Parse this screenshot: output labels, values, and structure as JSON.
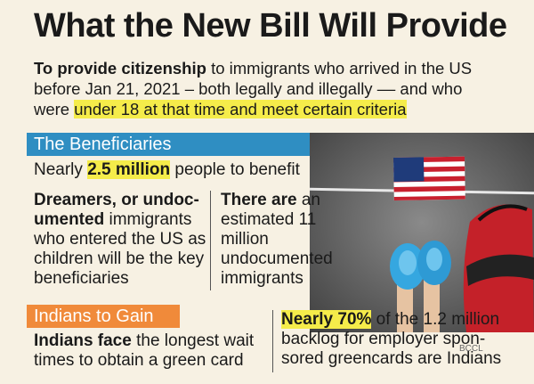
{
  "title": "What the New Bill Will Provide",
  "intro": {
    "line1_bold": "To provide citizenship",
    "line1_rest": " to immigrants who arrived in the US",
    "line2": "before Jan 21, 2021 – both legally and illegally –– and who",
    "line3_pre": "were ",
    "line3_highlight": "under 18 at that time and meet certain criteria"
  },
  "beneficiaries": {
    "header": "The Beneficiaries",
    "line_pre": "Nearly ",
    "line_highlight": "2.5 million",
    "line_post": " people to benefit",
    "dreamers_bold": "Dreamers, or undoc-umented",
    "dreamers_rest": " immigrants who entered the US as children will be the key beneficiaries",
    "estimate_bold": "There are",
    "estimate_rest": " an estimated 11 million undocumented immigrants"
  },
  "indians": {
    "header": "Indians to Gain",
    "left_bold": "Indians face",
    "left_rest": " the longest wait times to obtain a green card",
    "right_bold": "Nearly 70%",
    "right_rest": " of the 1.2 million backlog for employer spon-sored greencards are Indians"
  },
  "credit": "BCCL",
  "colors": {
    "beneficiaries_header": "#2f8ec2",
    "indians_header": "#f08a3a",
    "highlight": "#f5ec4a"
  }
}
